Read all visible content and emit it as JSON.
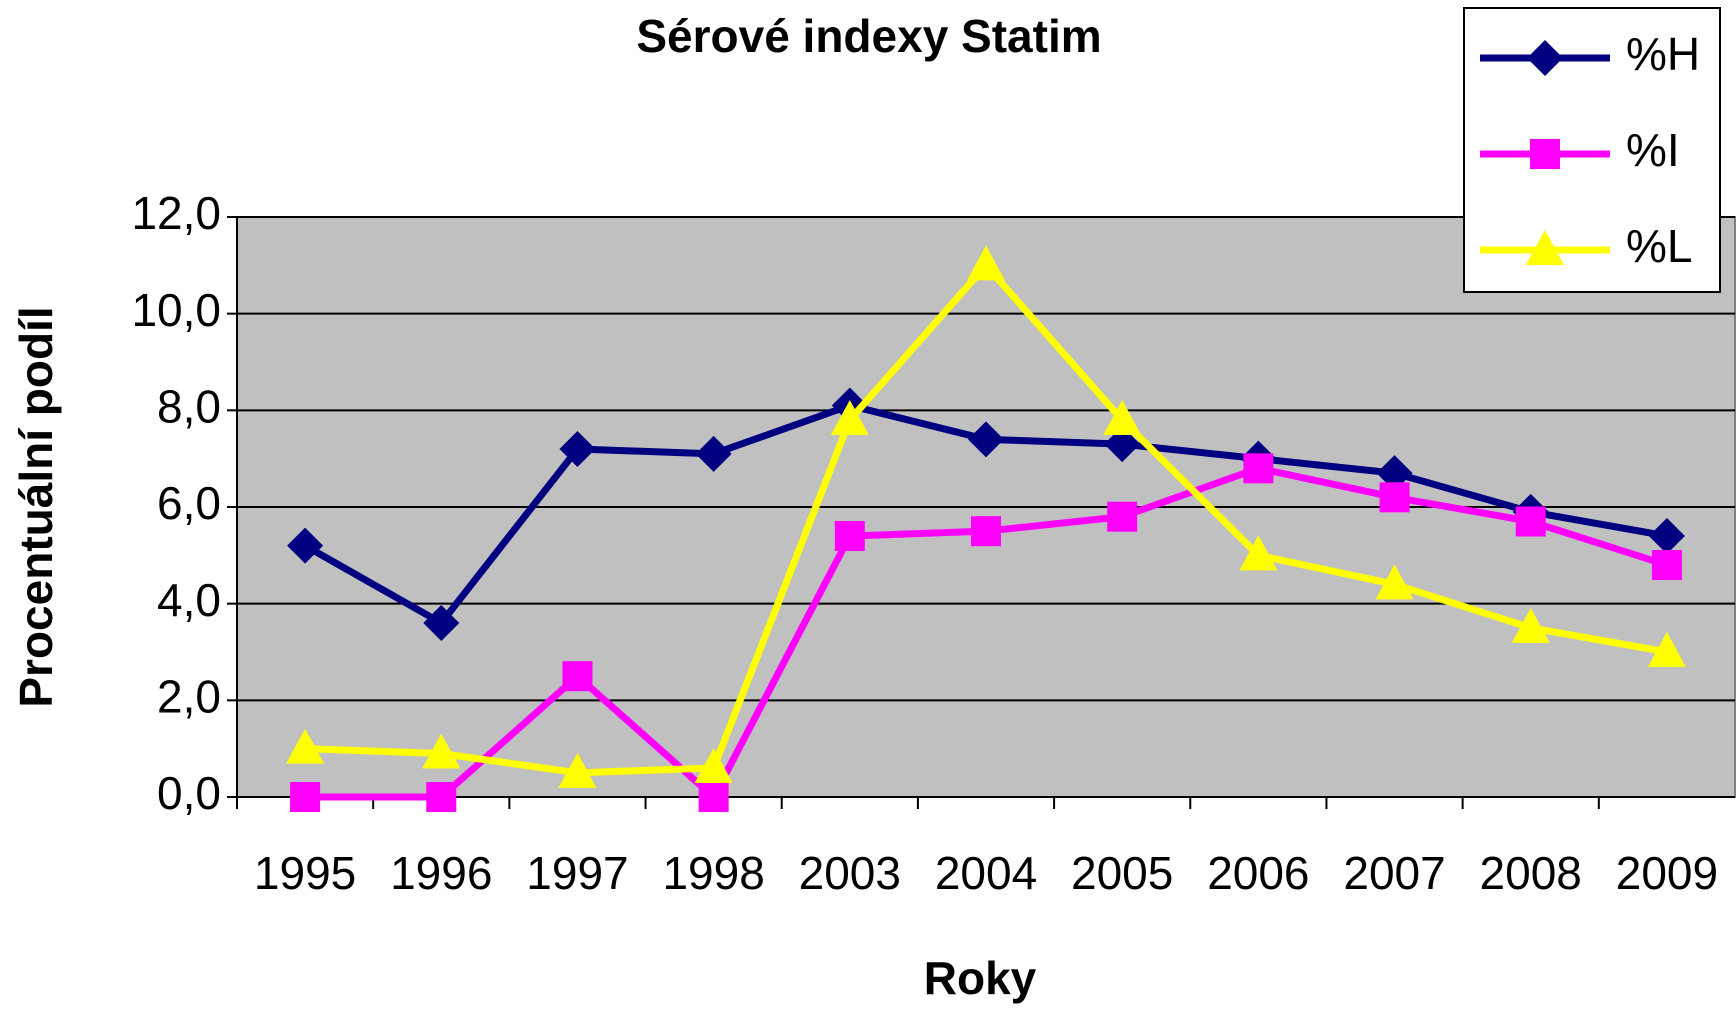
{
  "chart_data": {
    "type": "line",
    "title": "Sérové indexy Statim",
    "x_label": "Roky",
    "y_label": "Procentuální podíl",
    "categories": [
      "1995",
      "1996",
      "1997",
      "1998",
      "2003",
      "2004",
      "2005",
      "2006",
      "2007",
      "2008",
      "2009"
    ],
    "series": [
      {
        "name": "%H",
        "color": "#000080",
        "marker": "diamond",
        "values": [
          5.2,
          3.6,
          7.2,
          7.1,
          8.1,
          7.4,
          7.3,
          7.0,
          6.7,
          5.9,
          5.4
        ]
      },
      {
        "name": "%I",
        "color": "#ff00ff",
        "marker": "square",
        "values": [
          0.0,
          0.0,
          2.5,
          0.0,
          5.4,
          5.5,
          5.8,
          6.8,
          6.2,
          5.7,
          4.8
        ]
      },
      {
        "name": "%L",
        "color": "#ffff00",
        "marker": "triangle",
        "values": [
          1.0,
          0.9,
          0.5,
          0.6,
          7.8,
          11.0,
          7.8,
          5.0,
          4.4,
          3.5,
          3.0
        ]
      }
    ],
    "ylim": [
      0,
      12
    ],
    "yticks": [
      {
        "value": 0,
        "label": "0,0"
      },
      {
        "value": 2,
        "label": "2,0"
      },
      {
        "value": 4,
        "label": "4,0"
      },
      {
        "value": 6,
        "label": "6,0"
      },
      {
        "value": 8,
        "label": "8,0"
      },
      {
        "value": 10,
        "label": "10,0"
      },
      {
        "value": 12,
        "label": "12,0"
      }
    ],
    "grid": true,
    "legend": "upper right",
    "plot_background": "#c0c0c0"
  }
}
